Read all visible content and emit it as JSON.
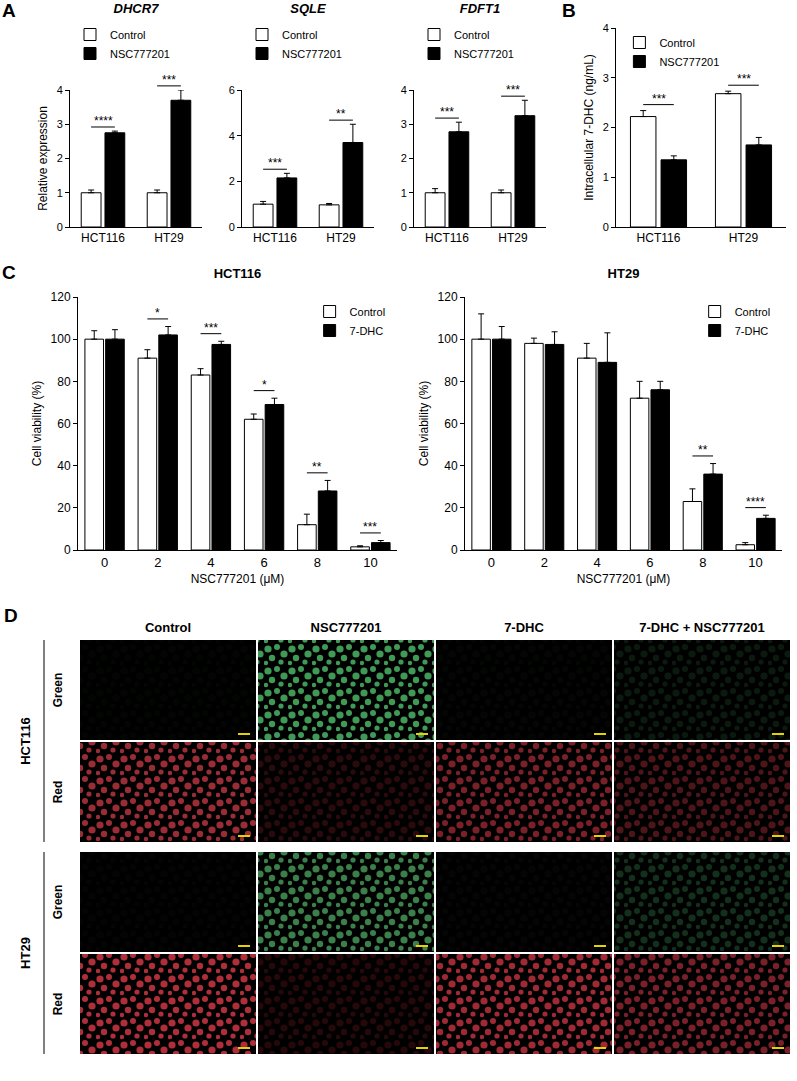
{
  "chart_data": [
    {
      "type": "bar",
      "panel_label": "A",
      "title": "DHCR7",
      "y_label": "Relative expression",
      "categories": [
        "HCT116",
        "HT29"
      ],
      "series": [
        {
          "name": "Control",
          "color": "#ffffff",
          "values": [
            1.0,
            1.0
          ],
          "errors": [
            0.08,
            0.08
          ]
        },
        {
          "name": "NSC777201",
          "color": "#000000",
          "values": [
            2.75,
            3.7
          ],
          "errors": [
            0.05,
            0.3
          ]
        }
      ],
      "significance": [
        "****",
        "***"
      ],
      "ylim": [
        0,
        4
      ],
      "yticks": [
        0,
        1,
        2,
        3,
        4
      ],
      "legend": "top"
    },
    {
      "type": "bar",
      "title": "SQLE",
      "categories": [
        "HCT116",
        "HT29"
      ],
      "series": [
        {
          "name": "Control",
          "color": "#ffffff",
          "values": [
            1.0,
            0.97
          ],
          "errors": [
            0.12,
            0.06
          ]
        },
        {
          "name": "NSC777201",
          "color": "#000000",
          "values": [
            2.15,
            3.7
          ],
          "errors": [
            0.2,
            0.8
          ]
        }
      ],
      "significance": [
        "***",
        "**"
      ],
      "ylim": [
        0,
        6
      ],
      "yticks": [
        0,
        2,
        4,
        6
      ],
      "legend": "top"
    },
    {
      "type": "bar",
      "title": "FDFT1",
      "categories": [
        "HCT116",
        "HT29"
      ],
      "series": [
        {
          "name": "Control",
          "color": "#ffffff",
          "values": [
            1.0,
            1.0
          ],
          "errors": [
            0.12,
            0.08
          ]
        },
        {
          "name": "NSC777201",
          "color": "#000000",
          "values": [
            2.78,
            3.25
          ],
          "errors": [
            0.28,
            0.45
          ]
        }
      ],
      "significance": [
        "***",
        "***"
      ],
      "ylim": [
        0,
        4
      ],
      "yticks": [
        0,
        1,
        2,
        3,
        4
      ],
      "legend": "top"
    },
    {
      "type": "bar",
      "panel_label": "B",
      "y_label": "Intracellular 7-DHC (ng/mL)",
      "categories": [
        "HCT116",
        "HT29"
      ],
      "series": [
        {
          "name": "Control",
          "color": "#ffffff",
          "values": [
            2.22,
            2.68
          ],
          "errors": [
            0.12,
            0.05
          ]
        },
        {
          "name": "NSC777201",
          "color": "#000000",
          "values": [
            1.35,
            1.65
          ],
          "errors": [
            0.08,
            0.15
          ]
        }
      ],
      "significance": [
        "***",
        "***"
      ],
      "ylim": [
        0,
        4
      ],
      "yticks": [
        0,
        1,
        2,
        3,
        4
      ],
      "legend": "top left"
    },
    {
      "type": "bar",
      "panel_label": "C",
      "title": "HCT116",
      "x_label": "NSC777201 (μM)",
      "y_label": "Cell viability (%)",
      "categories": [
        "0",
        "2",
        "4",
        "6",
        "8",
        "10"
      ],
      "series": [
        {
          "name": "Control",
          "color": "#ffffff",
          "values": [
            100,
            91,
            83,
            62,
            12,
            1.5
          ],
          "errors": [
            4,
            4,
            3,
            2.5,
            5,
            0.5
          ]
        },
        {
          "name": "7-DHC",
          "color": "#000000",
          "values": [
            100,
            102,
            97.5,
            69,
            28,
            3.5
          ],
          "errors": [
            4.5,
            4,
            1.5,
            3,
            5,
            1
          ]
        }
      ],
      "significance": [
        null,
        "*",
        "***",
        "*",
        "**",
        "***"
      ],
      "ylim": [
        0,
        120
      ],
      "yticks": [
        0,
        20,
        40,
        60,
        80,
        100,
        120
      ],
      "legend": "top right"
    },
    {
      "type": "bar",
      "title": "HT29",
      "x_label": "NSC777201 (μM)",
      "y_label": "Cell viability (%)",
      "categories": [
        "0",
        "2",
        "4",
        "6",
        "8",
        "10"
      ],
      "series": [
        {
          "name": "Control",
          "color": "#ffffff",
          "values": [
            100,
            98,
            91,
            72,
            23,
            2.5
          ],
          "errors": [
            12,
            2.5,
            7,
            8,
            6,
            1
          ]
        },
        {
          "name": "7-DHC",
          "color": "#000000",
          "values": [
            100,
            97.5,
            89,
            76,
            36,
            15
          ],
          "errors": [
            6,
            6,
            14,
            4,
            5,
            1.5
          ]
        }
      ],
      "significance": [
        null,
        null,
        null,
        null,
        "**",
        "****"
      ],
      "ylim": [
        0,
        120
      ],
      "yticks": [
        0,
        20,
        40,
        60,
        80,
        100,
        120
      ],
      "legend": "top right"
    }
  ],
  "image_panel": {
    "panel_label": "D",
    "columns": [
      "Control",
      "NSC777201",
      "7-DHC",
      "7-DHC + NSC777201"
    ],
    "groups": [
      {
        "name": "HCT116",
        "rows": [
          {
            "label": "Green",
            "colors": [
              "#030503",
              "#3f9a55",
              "#040604",
              "#0b1a0f"
            ]
          },
          {
            "label": "Red",
            "colors": [
              "#9a2c36",
              "#2a0a0c",
              "#7a2028",
              "#4e1519"
            ]
          }
        ]
      },
      {
        "name": "HT29",
        "rows": [
          {
            "label": "Green",
            "colors": [
              "#030403",
              "#3a8048",
              "#040504",
              "#12301c"
            ]
          },
          {
            "label": "Red",
            "colors": [
              "#b02e3a",
              "#26080a",
              "#a02a34",
              "#7a2028"
            ]
          }
        ]
      }
    ]
  }
}
